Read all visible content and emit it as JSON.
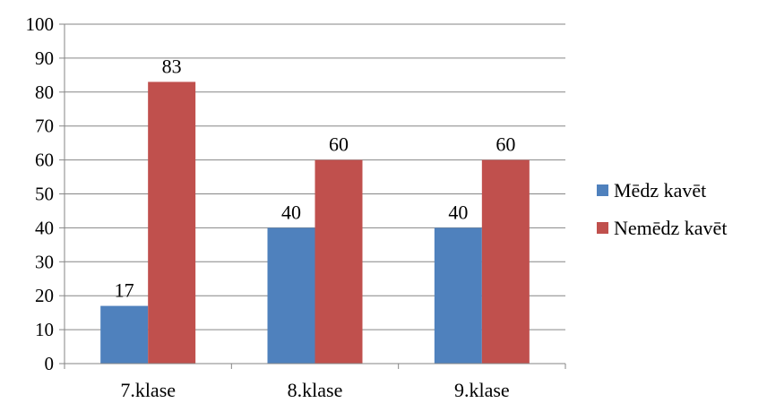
{
  "chart_data": {
    "type": "bar",
    "categories": [
      "7.klase",
      "8.klase",
      "9.klase"
    ],
    "series": [
      {
        "name": "Mēdz kavēt",
        "values": [
          17,
          40,
          40
        ],
        "color": "#4F81BD"
      },
      {
        "name": "Nemēdz kavēt",
        "values": [
          83,
          60,
          60
        ],
        "color": "#C0504D"
      }
    ],
    "ylim": [
      0,
      100
    ],
    "yticks": [
      0,
      10,
      20,
      30,
      40,
      50,
      60,
      70,
      80,
      90,
      100
    ],
    "grid": true,
    "legend_position": "right",
    "data_labels": true
  }
}
